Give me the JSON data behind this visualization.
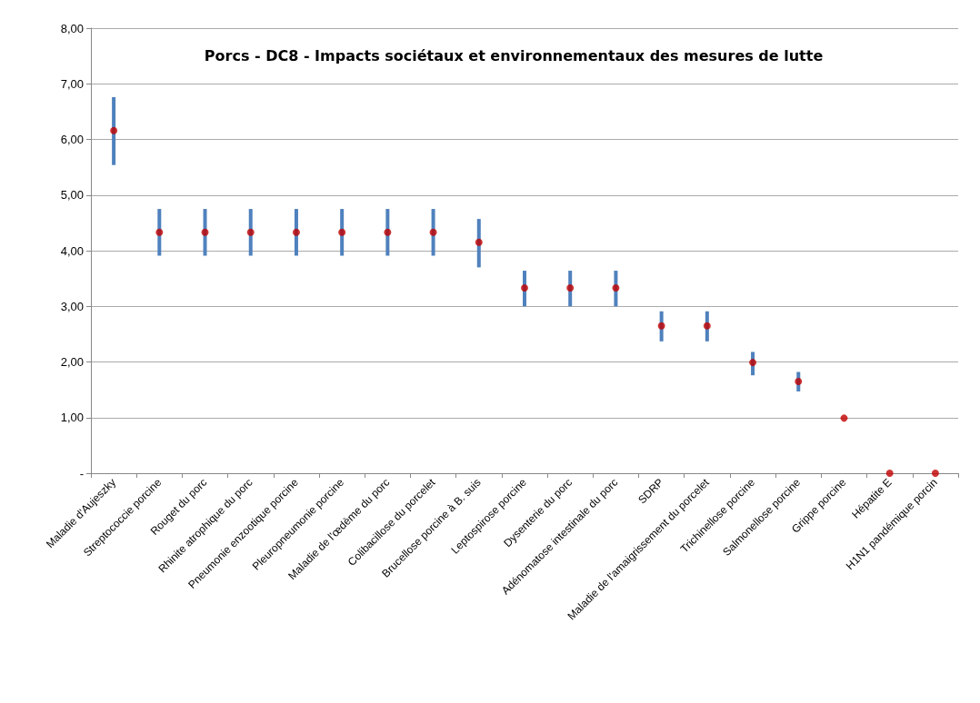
{
  "chart_data": {
    "type": "scatter",
    "title": "Porcs - DC8 - Impacts sociétaux et environnementaux des mesures de lutte",
    "categories": [
      "Maladie d'Aujeszky",
      "Streptococcie porcine",
      "Rouget du porc",
      "Rhinite atrophique du porc",
      "Pneumonie enzootique porcine",
      "Pleuropneumonie porcine",
      "Maladie de l'œdème du porc",
      "Colibacillose du porcelet",
      "Brucellose porcine à B. suis",
      "Leptospirose porcine",
      "Dysenterie du porc",
      "Adénomatose intestinale du porc",
      "SDRP",
      "Maladie de l'amaigrissement du porcelet",
      "Trichinellose porcine",
      "Salmonellose porcine",
      "Grippe porcine",
      "Hépatite E",
      "H1N1 pandémique porcin"
    ],
    "series": [
      {
        "color": "#c00000",
        "values": [
          6.16,
          4.33,
          4.33,
          4.33,
          4.33,
          4.33,
          4.33,
          4.33,
          4.15,
          3.33,
          3.33,
          3.33,
          2.65,
          2.65,
          1.99,
          1.65,
          0.99,
          0,
          0
        ],
        "errors": [
          [
            5.54,
            6.76
          ],
          [
            3.91,
            4.75
          ],
          [
            3.91,
            4.75
          ],
          [
            3.91,
            4.75
          ],
          [
            3.91,
            4.75
          ],
          [
            3.91,
            4.75
          ],
          [
            3.91,
            4.75
          ],
          [
            3.91,
            4.75
          ],
          [
            3.7,
            4.57
          ],
          [
            3.0,
            3.64
          ],
          [
            3.0,
            3.64
          ],
          [
            3.0,
            3.64
          ],
          [
            2.37,
            2.91
          ],
          [
            2.37,
            2.91
          ],
          [
            1.76,
            2.18
          ],
          [
            1.47,
            1.82
          ],
          null,
          null,
          null
        ]
      }
    ],
    "ylim": [
      0,
      8
    ],
    "yticks": [
      {
        "value": 0,
        "label": "-"
      },
      {
        "value": 1,
        "label": "1,00"
      },
      {
        "value": 2,
        "label": "2,00"
      },
      {
        "value": 3,
        "label": "3,00"
      },
      {
        "value": 4,
        "label": "4,00"
      },
      {
        "value": 5,
        "label": "5,00"
      },
      {
        "value": 6,
        "label": "6,00"
      },
      {
        "value": 7,
        "label": "7,00"
      },
      {
        "value": 8,
        "label": "8,00"
      }
    ],
    "grid": "y",
    "marker": "circle"
  }
}
